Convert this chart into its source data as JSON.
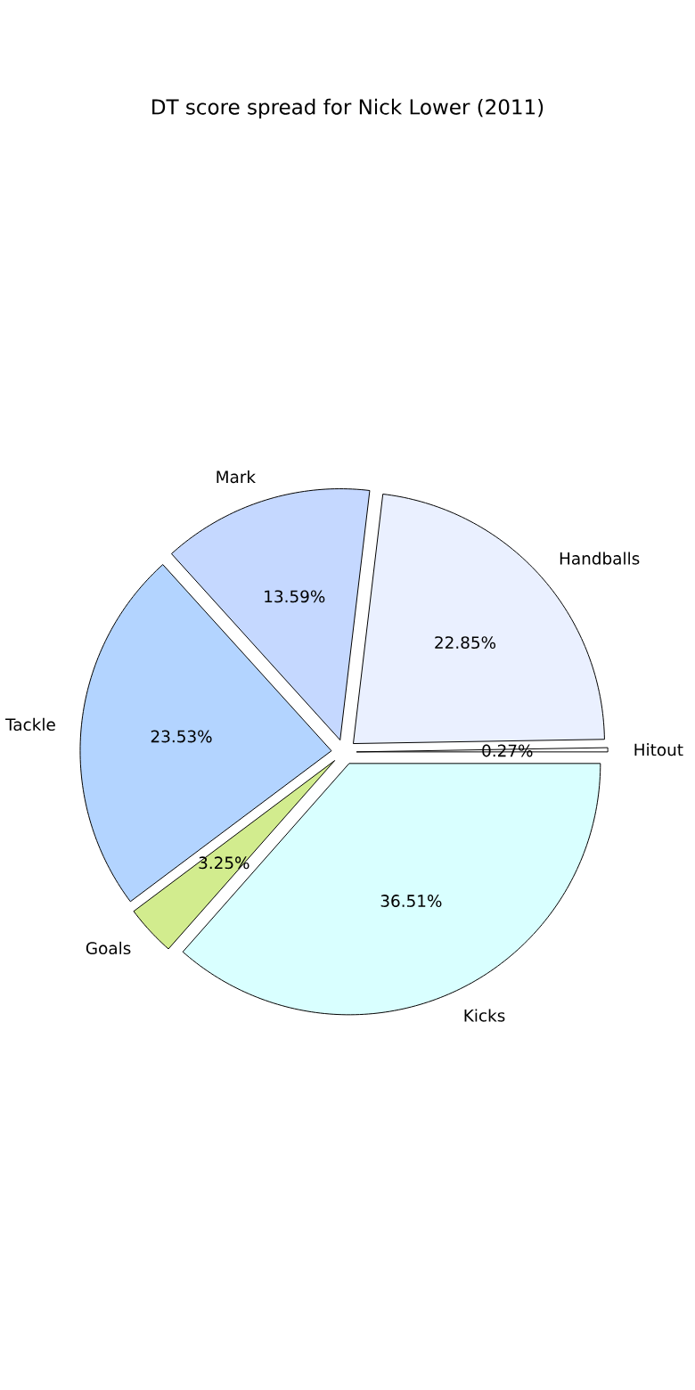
{
  "chart_data": {
    "type": "pie",
    "title": "DT score spread for Nick Lower (2011)",
    "categories": [
      "Hitout",
      "Handballs",
      "Mark",
      "Tackle",
      "Goals",
      "Kicks"
    ],
    "values": [
      0.27,
      22.85,
      13.59,
      23.53,
      3.25,
      36.51
    ],
    "colors": [
      "#ffffff",
      "#eaf0ff",
      "#c5d8ff",
      "#b3d4ff",
      "#d2ec8e",
      "#d9ffff"
    ],
    "value_labels": [
      "0.27%",
      "22.85%",
      "13.59%",
      "23.53%",
      "3.25%",
      "36.51%"
    ]
  }
}
